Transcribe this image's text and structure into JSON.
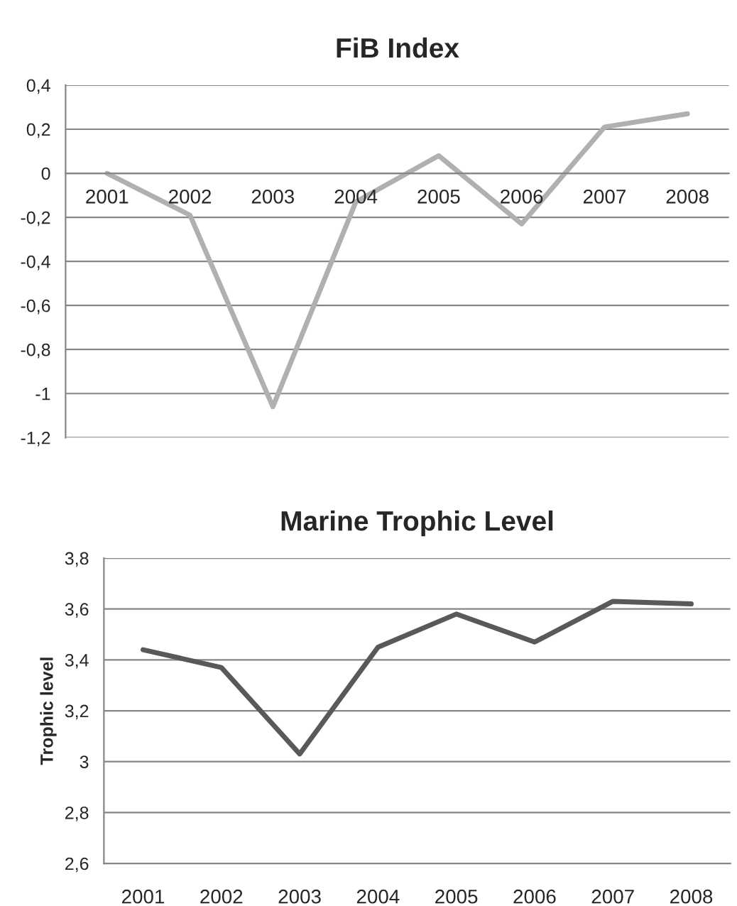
{
  "chart_data": [
    {
      "type": "line",
      "title": "FiB Index",
      "categories": [
        "2001",
        "2002",
        "2003",
        "2004",
        "2005",
        "2006",
        "2007",
        "2008"
      ],
      "series": [
        {
          "color": "#b0b0b0",
          "values": [
            0,
            -0.19,
            -1.06,
            -0.13,
            0.08,
            -0.23,
            0.21,
            0.27
          ]
        }
      ],
      "ylim": [
        -1.2,
        0.4
      ],
      "yticks": [
        {
          "value": -1.2,
          "label": "-1,2"
        },
        {
          "value": -1,
          "label": "-1"
        },
        {
          "value": -0.8,
          "label": "-0,8"
        },
        {
          "value": -0.6,
          "label": "-0,6"
        },
        {
          "value": -0.4,
          "label": "-0,4"
        },
        {
          "value": -0.2,
          "label": "-0,2"
        },
        0,
        {
          "value": 0.2,
          "label": "0,2"
        },
        {
          "value": 0.4,
          "label": "0,4"
        }
      ],
      "grid": "y",
      "marker": "none",
      "line_style": "solid",
      "legend": false
    },
    {
      "type": "line",
      "title": "Marine Trophic Level",
      "ylabel": "Trophic level",
      "categories": [
        "2001",
        "2002",
        "2003",
        "2004",
        "2005",
        "2006",
        "2007",
        "2008"
      ],
      "series": [
        {
          "color": "#595959",
          "values": [
            3.44,
            3.37,
            3.03,
            3.45,
            3.58,
            3.47,
            3.63,
            3.62
          ]
        }
      ],
      "ylim": [
        2.6,
        3.8
      ],
      "yticks": [
        {
          "value": 2.6,
          "label": "2,6"
        },
        {
          "value": 2.8,
          "label": "2,8"
        },
        3,
        {
          "value": 3.2,
          "label": "3,2"
        },
        {
          "value": 3.4,
          "label": "3,4"
        },
        {
          "value": 3.6,
          "label": "3,6"
        },
        {
          "value": 3.8,
          "label": "3,8"
        }
      ],
      "grid": "y",
      "marker": "none",
      "line_style": "solid",
      "legend": false
    }
  ]
}
